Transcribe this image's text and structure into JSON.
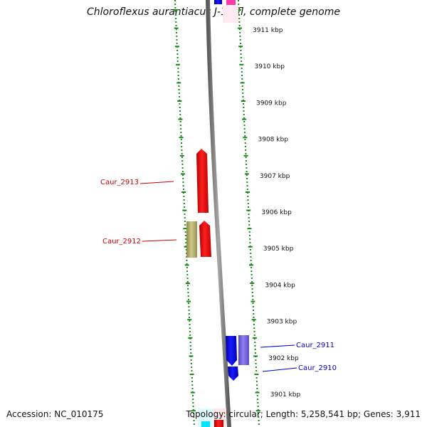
{
  "title": "Chloroflexus aurantiacus J-10-fl, complete genome",
  "footer": {
    "accession": "Accession: NC_010175",
    "summary": "Topology: circular; Length: 5,258,541 bp; Genes: 3,911"
  },
  "colors": {
    "ruler": "#1a8a1a",
    "backbone": "#808080",
    "label_left": "#cc0000",
    "label_right": "#0000cc",
    "gene_red": "#ff0000",
    "gene_olive": "#bdb76b",
    "gene_blue": "#0000ff",
    "gene_slateblue": "#7b68ee",
    "gene_pink": "#ff69b4",
    "gene_cyan": "#00ffff"
  },
  "ruler_ticks": [
    {
      "label": "3911 kbp"
    },
    {
      "label": "3910 kbp"
    },
    {
      "label": "3909 kbp"
    },
    {
      "label": "3908 kbp"
    },
    {
      "label": "3907 kbp"
    },
    {
      "label": "3906 kbp"
    },
    {
      "label": "3905 kbp"
    },
    {
      "label": "3904 kbp"
    },
    {
      "label": "3903 kbp"
    },
    {
      "label": "3902 kbp"
    },
    {
      "label": "3901 kbp"
    }
  ],
  "gene_labels": [
    {
      "name": "Caur_2913",
      "side": "left"
    },
    {
      "name": "Caur_2912",
      "side": "left"
    },
    {
      "name": "Caur_2911",
      "side": "right"
    },
    {
      "name": "Caur_2910",
      "side": "right"
    }
  ]
}
